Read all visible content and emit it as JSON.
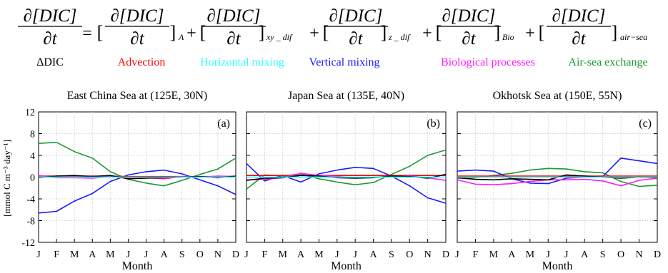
{
  "equation": {
    "term_numerator": "∂[DIC]",
    "term_denominator": "∂t",
    "equals": "=",
    "plus": "+",
    "bracket_open": "[",
    "bracket_close": "]",
    "subscripts": [
      "A",
      "xy _ dif",
      "z _ dif",
      "Bio",
      "air−sea"
    ]
  },
  "legend": [
    {
      "label": "ΔDIC",
      "color": "#000000"
    },
    {
      "label": "Advection",
      "color": "#ff0000"
    },
    {
      "label": "Horizontal mixing",
      "color": "#33ffff"
    },
    {
      "label": "Vertical mixing",
      "color": "#1a1aff"
    },
    {
      "label": "Biological processes",
      "color": "#ff1aff"
    },
    {
      "label": "Air-sea exchange",
      "color": "#1a9933"
    }
  ],
  "axis": {
    "ylabel": "[mmol C m⁻³ day⁻¹]",
    "xlabel": "Month"
  },
  "chart_data": [
    {
      "type": "line",
      "title": "East China Sea at (125E, 30N)",
      "panel_label": "(a)",
      "xlabel": "Month",
      "ylabel": "[mmol C m⁻³ day⁻¹]",
      "ylim": [
        -12,
        12
      ],
      "yticks": [
        -12,
        -8,
        -4,
        0,
        4,
        8,
        12
      ],
      "categories": [
        "J",
        "F",
        "M",
        "A",
        "M",
        "J",
        "J",
        "A",
        "S",
        "O",
        "N",
        "D"
      ],
      "series": [
        {
          "color": "#1a9933",
          "values": [
            6.2,
            6.4,
            4.7,
            3.5,
            1.0,
            -0.4,
            -1.1,
            -1.6,
            -0.6,
            0.5,
            1.5,
            3.5
          ]
        },
        {
          "color": "#1a1aff",
          "values": [
            -6.6,
            -6.3,
            -4.4,
            -3.0,
            -0.8,
            0.4,
            1.0,
            1.3,
            0.6,
            -0.5,
            -1.6,
            -3.2
          ]
        },
        {
          "color": "#ff0000",
          "values": [
            0.2,
            0.2,
            0.2,
            0.2,
            0.2,
            0.1,
            0.1,
            0.1,
            0.1,
            0.1,
            0.1,
            0.1
          ]
        },
        {
          "color": "#ff1aff",
          "values": [
            0.3,
            -0.1,
            -0.1,
            -0.2,
            0.1,
            -0.2,
            -0.1,
            -0.3,
            0.1,
            0.0,
            0.2,
            0.1
          ]
        },
        {
          "color": "#000000",
          "values": [
            -0.1,
            0.2,
            0.3,
            0.1,
            0.3,
            -0.3,
            -0.2,
            -0.1,
            0.0,
            0.1,
            -0.1,
            0.2
          ]
        },
        {
          "color": "#33ffff",
          "values": [
            0.0,
            0.0,
            0.0,
            0.0,
            0.0,
            0.0,
            0.0,
            0.0,
            0.0,
            0.0,
            0.0,
            0.0
          ]
        }
      ]
    },
    {
      "type": "line",
      "title": "Japan Sea at (135E, 40N)",
      "panel_label": "(b)",
      "xlabel": "Month",
      "ylim": [
        -12,
        12
      ],
      "yticks": [
        -12,
        -8,
        -4,
        0,
        4,
        8,
        12
      ],
      "categories": [
        "J",
        "F",
        "M",
        "A",
        "M",
        "J",
        "J",
        "A",
        "S",
        "O",
        "N",
        "D"
      ],
      "series": [
        {
          "color": "#1a9933",
          "values": [
            -2.2,
            0.4,
            0.2,
            0.6,
            -0.3,
            -0.9,
            -1.4,
            -1.0,
            0.5,
            2.0,
            4.0,
            5.0
          ]
        },
        {
          "color": "#1a1aff",
          "values": [
            2.5,
            -0.7,
            0.3,
            -0.9,
            0.6,
            1.3,
            1.8,
            1.6,
            0.2,
            -1.6,
            -3.8,
            -4.8
          ]
        },
        {
          "color": "#ff0000",
          "values": [
            0.3,
            0.3,
            0.3,
            0.3,
            0.3,
            0.3,
            0.3,
            0.3,
            0.3,
            0.3,
            0.3,
            0.3
          ]
        },
        {
          "color": "#ff1aff",
          "values": [
            -0.5,
            -0.4,
            -0.1,
            0.7,
            0.3,
            0.1,
            -0.1,
            0.0,
            0.1,
            0.2,
            -0.1,
            -0.6
          ]
        },
        {
          "color": "#000000",
          "values": [
            -0.6,
            -0.2,
            -0.1,
            0.3,
            0.2,
            -0.1,
            -0.2,
            -0.1,
            0.2,
            0.1,
            -0.2,
            0.5
          ]
        },
        {
          "color": "#33ffff",
          "values": [
            0.0,
            0.0,
            0.0,
            0.0,
            0.0,
            0.0,
            0.0,
            0.0,
            0.0,
            0.0,
            0.0,
            0.0
          ]
        }
      ]
    },
    {
      "type": "line",
      "title": "Okhotsk Sea at (150E, 55N)",
      "panel_label": "(c)",
      "xlabel": "Month",
      "ylim": [
        -12,
        12
      ],
      "yticks": [
        -12,
        -8,
        -4,
        0,
        4,
        8,
        12
      ],
      "categories": [
        "J",
        "F",
        "M",
        "A",
        "M",
        "J",
        "J",
        "A",
        "S",
        "O",
        "N",
        "D"
      ],
      "series": [
        {
          "color": "#1a9933",
          "values": [
            -0.2,
            -0.1,
            0.3,
            0.7,
            1.3,
            1.6,
            1.5,
            1.0,
            0.8,
            -0.8,
            -1.7,
            -1.5
          ]
        },
        {
          "color": "#1a1aff",
          "values": [
            1.1,
            1.3,
            1.1,
            -0.3,
            -1.1,
            -1.2,
            -0.2,
            0.0,
            0.1,
            3.5,
            3.0,
            2.5
          ]
        },
        {
          "color": "#ff0000",
          "values": [
            0.2,
            0.2,
            0.2,
            0.2,
            0.2,
            0.2,
            0.2,
            0.2,
            0.2,
            0.2,
            0.2,
            0.2
          ]
        },
        {
          "color": "#ff1aff",
          "values": [
            -0.5,
            -1.3,
            -1.4,
            -1.2,
            -0.8,
            -0.5,
            -0.5,
            -0.4,
            -0.7,
            -1.6,
            -0.6,
            -0.2
          ]
        },
        {
          "color": "#000000",
          "values": [
            -0.1,
            -0.4,
            -0.5,
            -0.3,
            -0.4,
            -0.5,
            0.4,
            0.2,
            0.0,
            -0.2,
            0.0,
            -0.1
          ]
        },
        {
          "color": "#33ffff",
          "values": [
            0.0,
            0.0,
            0.0,
            0.0,
            0.0,
            0.0,
            0.0,
            0.0,
            0.0,
            0.0,
            0.0,
            0.0
          ]
        }
      ]
    }
  ]
}
